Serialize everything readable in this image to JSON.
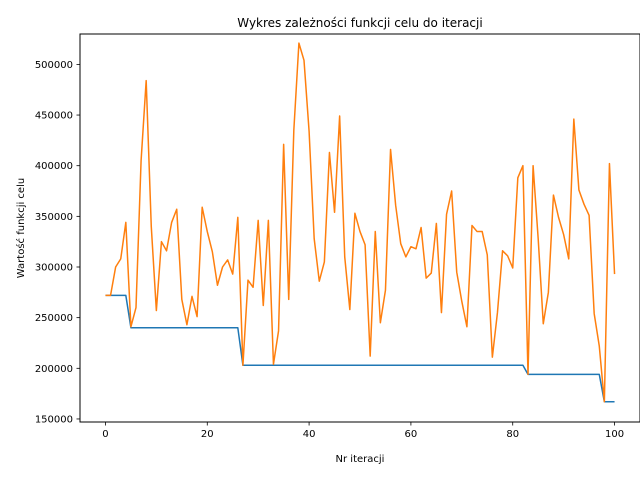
{
  "chart_data": {
    "type": "line",
    "title": "Wykres zależności funkcji celu do iteracji",
    "xlabel": "Nr iteracji",
    "ylabel": "Wartość funkcji celu",
    "xlim": [
      -5,
      105
    ],
    "ylim": [
      147000,
      530000
    ],
    "xticks": [
      0,
      20,
      40,
      60,
      80,
      100
    ],
    "yticks": [
      150000,
      200000,
      250000,
      300000,
      350000,
      400000,
      450000,
      500000
    ],
    "grid": false,
    "legend": "none",
    "series": [
      {
        "color": "#1f77b4",
        "x": [
          0,
          1,
          2,
          3,
          4,
          5,
          6,
          7,
          8,
          9,
          10,
          11,
          12,
          13,
          14,
          15,
          16,
          17,
          18,
          19,
          20,
          21,
          22,
          23,
          24,
          25,
          26,
          27,
          28,
          29,
          30,
          31,
          32,
          33,
          34,
          35,
          36,
          37,
          38,
          39,
          40,
          41,
          42,
          43,
          44,
          45,
          46,
          47,
          48,
          49,
          50,
          51,
          52,
          53,
          54,
          55,
          56,
          57,
          58,
          59,
          60,
          61,
          62,
          63,
          64,
          65,
          66,
          67,
          68,
          69,
          70,
          71,
          72,
          73,
          74,
          75,
          76,
          77,
          78,
          79,
          80,
          81,
          82,
          83,
          84,
          85,
          86,
          87,
          88,
          89,
          90,
          91,
          92,
          93,
          94,
          95,
          96,
          97,
          98,
          99,
          100
        ],
        "y": [
          272000,
          272000,
          272000,
          272000,
          272000,
          240000,
          240000,
          240000,
          240000,
          240000,
          240000,
          240000,
          240000,
          240000,
          240000,
          240000,
          240000,
          240000,
          240000,
          240000,
          240000,
          240000,
          240000,
          240000,
          240000,
          240000,
          240000,
          203000,
          203000,
          203000,
          203000,
          203000,
          203000,
          203000,
          203000,
          203000,
          203000,
          203000,
          203000,
          203000,
          203000,
          203000,
          203000,
          203000,
          203000,
          203000,
          203000,
          203000,
          203000,
          203000,
          203000,
          203000,
          203000,
          203000,
          203000,
          203000,
          203000,
          203000,
          203000,
          203000,
          203000,
          203000,
          203000,
          203000,
          203000,
          203000,
          203000,
          203000,
          203000,
          203000,
          203000,
          203000,
          203000,
          203000,
          203000,
          203000,
          203000,
          203000,
          203000,
          203000,
          203000,
          203000,
          203000,
          194000,
          194000,
          194000,
          194000,
          194000,
          194000,
          194000,
          194000,
          194000,
          194000,
          194000,
          194000,
          194000,
          194000,
          194000,
          167000,
          167000,
          167000
        ]
      },
      {
        "color": "#ff7f0e",
        "x": [
          0,
          1,
          2,
          3,
          4,
          5,
          6,
          7,
          8,
          9,
          10,
          11,
          12,
          13,
          14,
          15,
          16,
          17,
          18,
          19,
          20,
          21,
          22,
          23,
          24,
          25,
          26,
          27,
          28,
          29,
          30,
          31,
          32,
          33,
          34,
          35,
          36,
          37,
          38,
          39,
          40,
          41,
          42,
          43,
          44,
          45,
          46,
          47,
          48,
          49,
          50,
          51,
          52,
          53,
          54,
          55,
          56,
          57,
          58,
          59,
          60,
          61,
          62,
          63,
          64,
          65,
          66,
          67,
          68,
          69,
          70,
          71,
          72,
          73,
          74,
          75,
          76,
          77,
          78,
          79,
          80,
          81,
          82,
          83,
          84,
          85,
          86,
          87,
          88,
          89,
          90,
          91,
          92,
          93,
          94,
          95,
          96,
          97,
          98,
          99,
          100
        ],
        "y": [
          272000,
          272000,
          300000,
          308000,
          344000,
          241000,
          260000,
          405000,
          484000,
          340000,
          257000,
          325000,
          316000,
          344000,
          357000,
          268000,
          243000,
          271000,
          251000,
          359000,
          335000,
          315000,
          282000,
          300000,
          307000,
          293000,
          349000,
          203000,
          287000,
          280000,
          346000,
          262000,
          346000,
          204000,
          237000,
          421000,
          268000,
          435000,
          521000,
          504000,
          434000,
          328000,
          286000,
          305000,
          413000,
          354000,
          449000,
          310000,
          258000,
          353000,
          335000,
          322000,
          212000,
          335000,
          245000,
          277000,
          416000,
          361000,
          323000,
          310000,
          320000,
          318000,
          339000,
          289000,
          294000,
          343000,
          255000,
          352000,
          375000,
          295000,
          266000,
          241000,
          341000,
          335000,
          335000,
          312000,
          211000,
          255000,
          316000,
          311000,
          299000,
          388000,
          400000,
          194000,
          400000,
          328000,
          244000,
          275000,
          371000,
          349000,
          332000,
          308000,
          446000,
          376000,
          362000,
          351000,
          254000,
          222000,
          167000,
          402000,
          293000
        ]
      }
    ]
  }
}
